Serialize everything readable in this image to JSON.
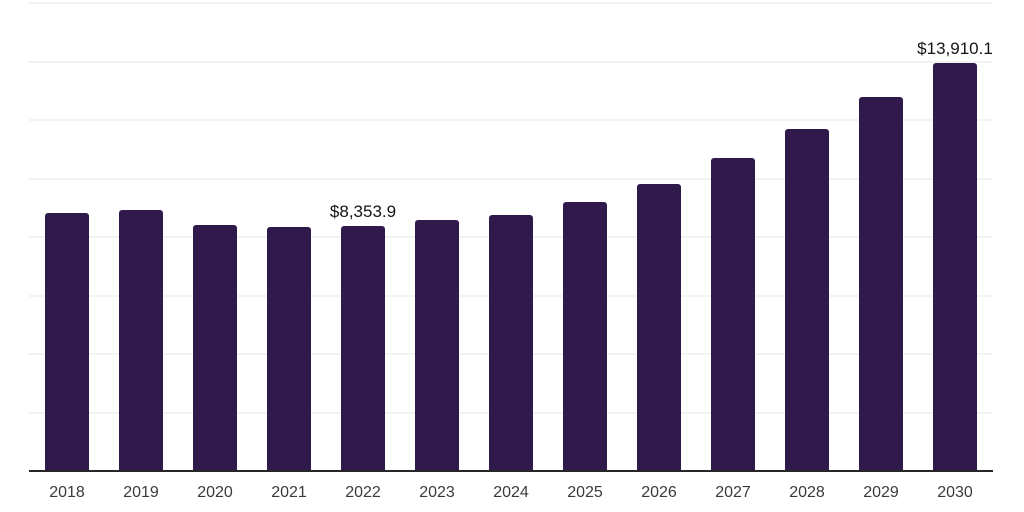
{
  "chart_data": {
    "type": "bar",
    "title": "",
    "xlabel": "",
    "ylabel": "",
    "categories": [
      "2018",
      "2019",
      "2020",
      "2021",
      "2022",
      "2023",
      "2024",
      "2025",
      "2026",
      "2027",
      "2028",
      "2029",
      "2030"
    ],
    "values": [
      8775,
      8880,
      8365,
      8315,
      8353.9,
      8540,
      8725,
      9160,
      9790,
      10655,
      11655,
      12765,
      13910.1
    ],
    "data_labels": [
      {
        "category": "2022",
        "text": "$8,353.9"
      },
      {
        "category": "2030",
        "text": "$13,910.1"
      }
    ],
    "ylim": [
      0,
      16000
    ],
    "gridline_step": 2000,
    "grid": "horizontal-only",
    "legend": "none",
    "y_axis_ticks_visible": false,
    "colors": {
      "bar": "#2f1a4b",
      "gridline": "#f2f2f4",
      "axis_line": "#262626",
      "data_label": "#141414",
      "tick_label": "#3b3b3b",
      "background": "#ffffff"
    }
  }
}
